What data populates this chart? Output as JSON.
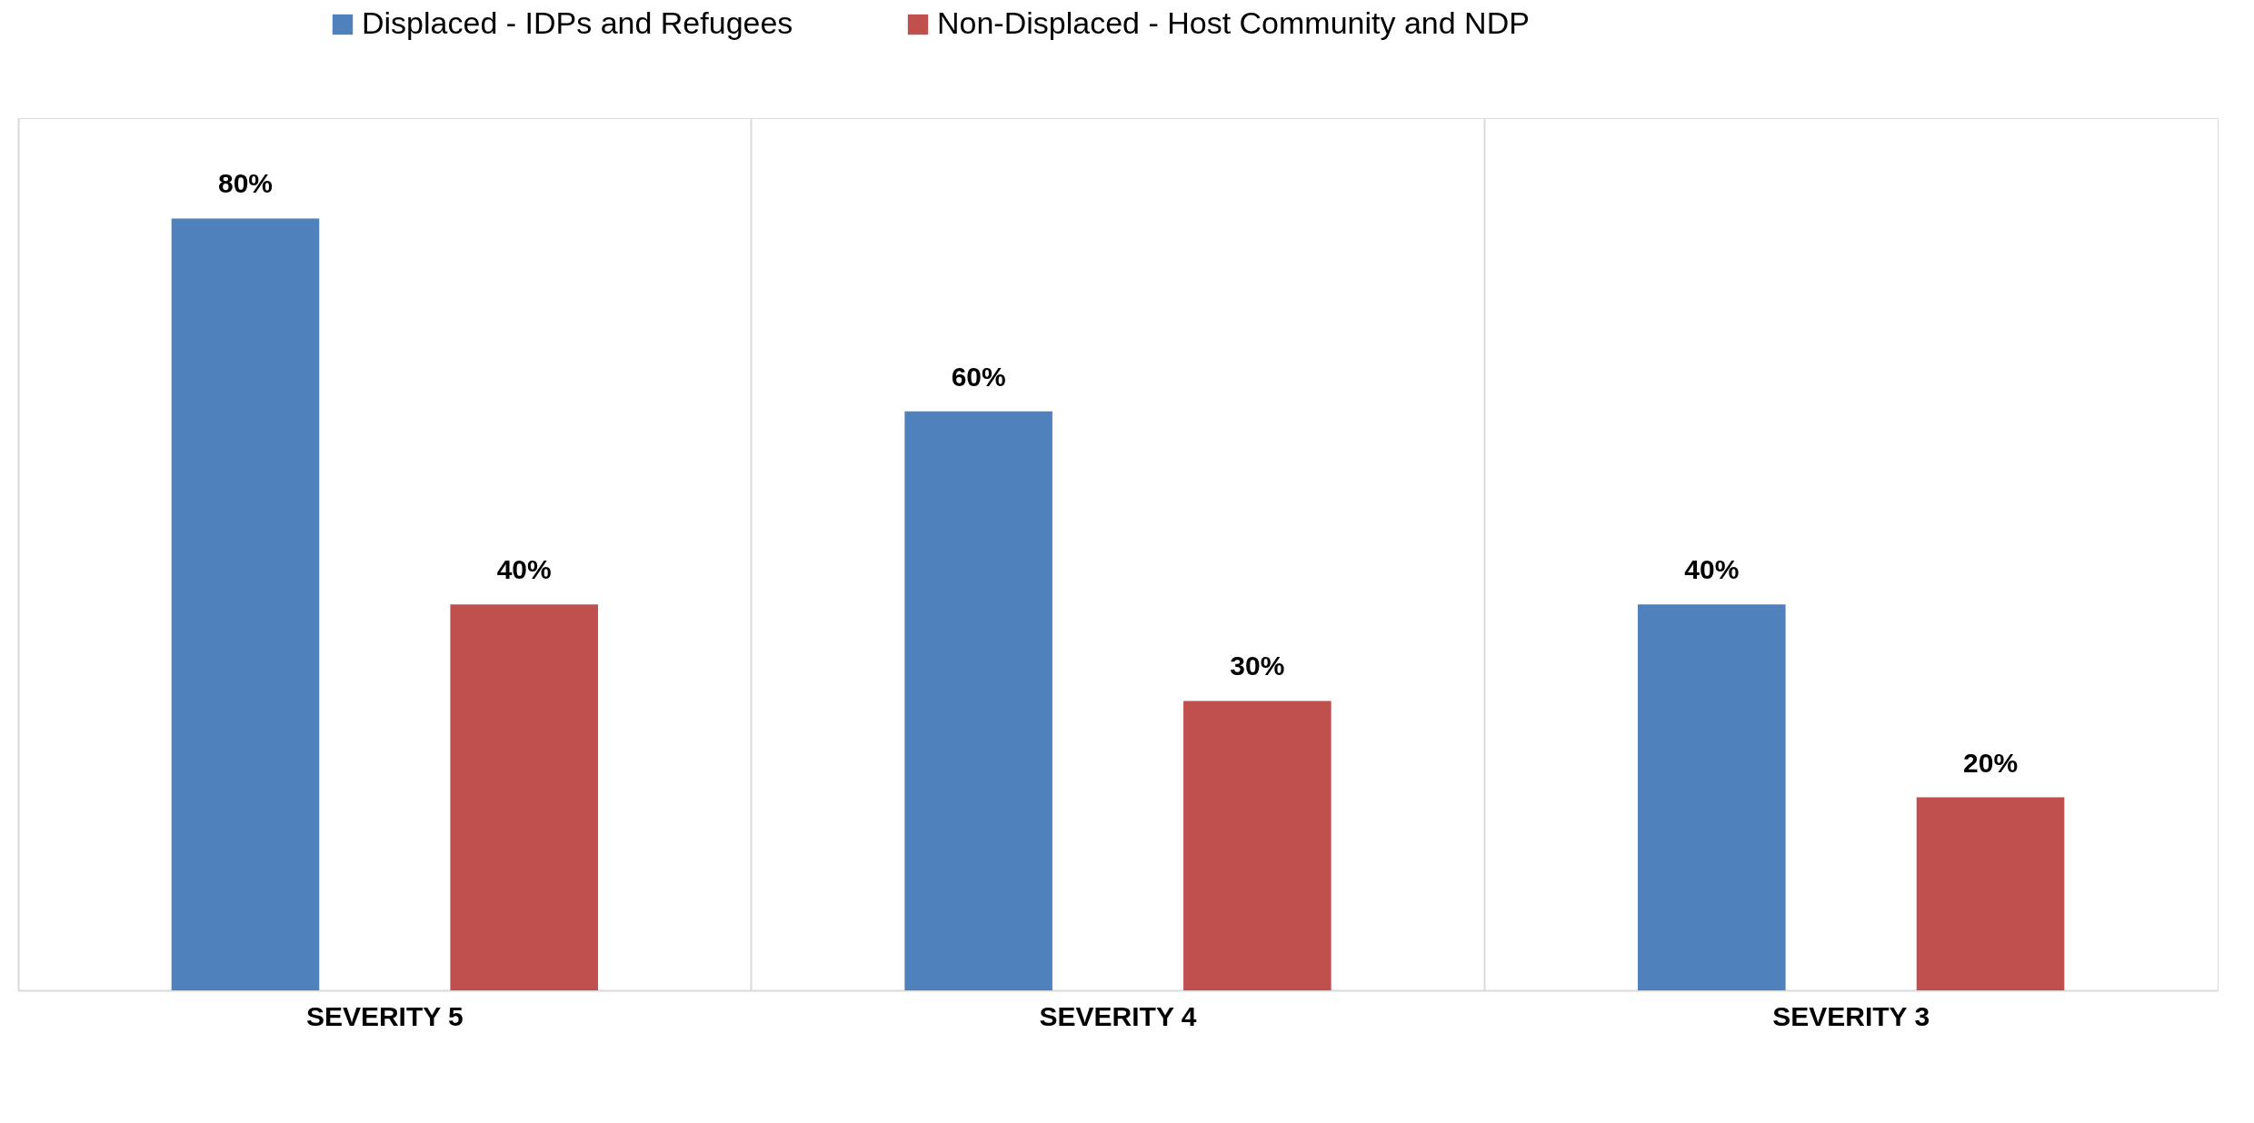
{
  "chart_data": {
    "type": "bar",
    "categories": [
      "SEVERITY 5",
      "SEVERITY 4",
      "SEVERITY 3"
    ],
    "series": [
      {
        "name": "Displaced - IDPs and Refugees",
        "color": "#4f81bd",
        "values": [
          80,
          60,
          40
        ],
        "value_labels": [
          "80%",
          "60%",
          "40%"
        ]
      },
      {
        "name": "Non-Displaced - Host Community and NDP",
        "color": "#c0504d",
        "values": [
          40,
          30,
          20
        ],
        "value_labels": [
          "40%",
          "30%",
          "20%"
        ]
      }
    ],
    "grid": "x",
    "legend": "top",
    "tick_labels": "x"
  }
}
